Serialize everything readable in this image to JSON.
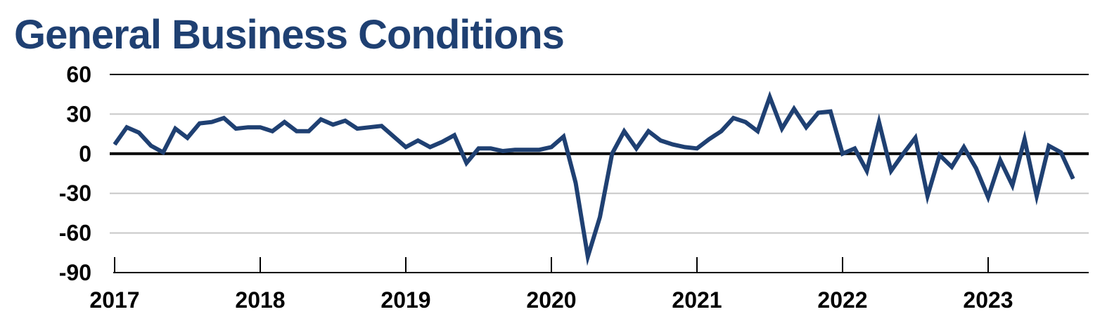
{
  "chart_data": {
    "type": "line",
    "title": "General Business Conditions",
    "xlabel": "",
    "ylabel": "",
    "ylim": [
      -90,
      60
    ],
    "yticks": [
      60,
      30,
      0,
      -30,
      -60,
      -90
    ],
    "xticks": [
      "2017",
      "2018",
      "2019",
      "2020",
      "2021",
      "2022",
      "2023"
    ],
    "x_range": [
      "2017-01",
      "2023-08"
    ],
    "grid": true,
    "legend": "none",
    "colors": {
      "series": "#1f4072",
      "zero_line": "#000000",
      "grid": "#c8c8c8"
    },
    "series": [
      {
        "start": "2017-01",
        "frequency": "monthly",
        "values": [
          7,
          20,
          16,
          6,
          1,
          19,
          12,
          23,
          24,
          27,
          19,
          20,
          20,
          17,
          24,
          17,
          17,
          26,
          22,
          25,
          19,
          20,
          21,
          13,
          5,
          10,
          5,
          9,
          14,
          -7,
          4,
          4,
          2,
          3,
          3,
          3,
          5,
          13,
          -22,
          -78,
          -48,
          0,
          17,
          4,
          17,
          10,
          7,
          5,
          4,
          11,
          17,
          27,
          24,
          17,
          43,
          19,
          34,
          20,
          31,
          32,
          0,
          4,
          -13,
          24,
          -13,
          0,
          12,
          -32,
          -1,
          -10,
          5,
          -11,
          -33,
          -5,
          -24,
          11,
          -32,
          6,
          1,
          -19
        ]
      }
    ]
  }
}
